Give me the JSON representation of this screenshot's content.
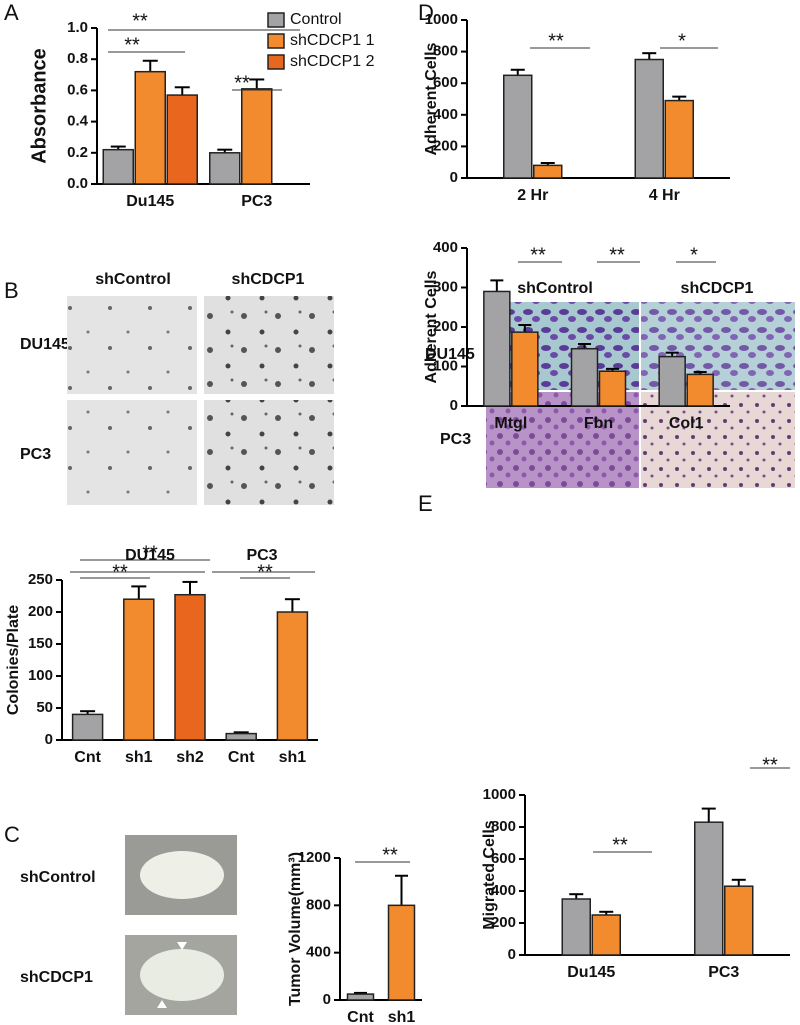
{
  "panel_labels": [
    "A",
    "B",
    "C",
    "D",
    "E"
  ],
  "image_labels": {
    "B": {
      "columns": [
        "shControl",
        "shCDCP1"
      ],
      "rows": [
        "DU145",
        "PC3"
      ]
    },
    "C": {
      "rows": [
        "shControl",
        "shCDCP1"
      ]
    },
    "E": {
      "columns": [
        "shControl",
        "shCDCP1"
      ],
      "rows": [
        "DU145",
        "PC3"
      ]
    }
  },
  "chart_data": [
    {
      "type": "bar",
      "ylabel": "Absorbance",
      "categories": [
        "Du145",
        "PC3"
      ],
      "series": [
        {
          "name": "Control",
          "color": "#a3a3a6",
          "values": [
            0.22,
            0.2
          ],
          "errors": [
            0.02,
            0.02
          ]
        },
        {
          "name": "shCDCP1 1",
          "color": "#f28a2e",
          "values": [
            0.72,
            0.61
          ],
          "errors": [
            0.07,
            0.06
          ]
        },
        {
          "name": "shCDCP1 2",
          "color": "#e8661e",
          "values": [
            0.57,
            null
          ],
          "errors": [
            0.05,
            null
          ]
        }
      ],
      "ylim": [
        0,
        1.0
      ],
      "yticks": [
        {
          "value": 0,
          "label": "0.0"
        },
        0.2,
        0.4,
        0.6,
        0.8,
        {
          "value": 1.0,
          "label": "1.0"
        }
      ],
      "annotations": [
        "**",
        "**",
        "**"
      ],
      "legend": "top-right"
    },
    {
      "type": "bar",
      "ylabel": "Adherent Cells",
      "categories": [
        "2 Hr",
        "4 Hr"
      ],
      "series": [
        {
          "color": "#a3a3a6",
          "values": [
            650,
            750
          ],
          "errors": [
            35,
            40
          ]
        },
        {
          "color": "#f28a2e",
          "values": [
            80,
            490
          ],
          "errors": [
            15,
            25
          ]
        }
      ],
      "ylim": [
        0,
        1000
      ],
      "yticks": [
        0,
        200,
        400,
        600,
        800,
        1000
      ],
      "annotations": [
        "**",
        "*"
      ]
    },
    {
      "type": "bar",
      "ylabel": "Adherent Cells",
      "categories": [
        "Mtgl",
        "Fbn",
        "Col1"
      ],
      "series": [
        {
          "color": "#a3a3a6",
          "values": [
            290,
            145,
            125
          ],
          "errors": [
            28,
            12,
            10
          ]
        },
        {
          "color": "#f28a2e",
          "values": [
            187,
            88,
            80
          ],
          "errors": [
            18,
            6,
            6
          ]
        }
      ],
      "ylim": [
        0,
        400
      ],
      "yticks": [
        0,
        100,
        200,
        300,
        400
      ],
      "annotations": [
        "**",
        "**",
        "*"
      ]
    },
    {
      "type": "bar",
      "ylabel": "Colonies/Plate",
      "categories": [
        "Cnt",
        "sh1",
        "sh2",
        "Cnt",
        "sh1"
      ],
      "group_labels": [
        "DU145",
        "PC3"
      ],
      "values": [
        40,
        220,
        227,
        10,
        200
      ],
      "errors": [
        5,
        20,
        20,
        2,
        20
      ],
      "colors": [
        "#a3a3a6",
        "#f28a2e",
        "#e8661e",
        "#a3a3a6",
        "#f28a2e"
      ],
      "ylim": [
        0,
        250
      ],
      "yticks": [
        0,
        50,
        100,
        150,
        200,
        250
      ],
      "annotations": [
        "**",
        "**",
        "**"
      ]
    },
    {
      "type": "bar",
      "ylabel": "Tumor Volume(mm³)",
      "categories": [
        "Cnt",
        "sh1"
      ],
      "values": [
        50,
        800
      ],
      "errors": [
        10,
        250
      ],
      "colors": [
        "#a3a3a6",
        "#f28a2e"
      ],
      "ylim": [
        0,
        1200
      ],
      "yticks": [
        0,
        400,
        800,
        1200
      ],
      "annotations": [
        "**"
      ]
    },
    {
      "type": "bar",
      "ylabel": "Migrated Cells",
      "categories": [
        "Du145",
        "PC3"
      ],
      "series": [
        {
          "color": "#a3a3a6",
          "values": [
            350,
            830
          ],
          "errors": [
            30,
            85
          ]
        },
        {
          "color": "#f28a2e",
          "values": [
            250,
            430
          ],
          "errors": [
            20,
            40
          ]
        }
      ],
      "ylim": [
        0,
        1000
      ],
      "yticks": [
        0,
        200,
        400,
        600,
        800,
        1000
      ],
      "annotations": [
        "**",
        "**"
      ]
    }
  ]
}
